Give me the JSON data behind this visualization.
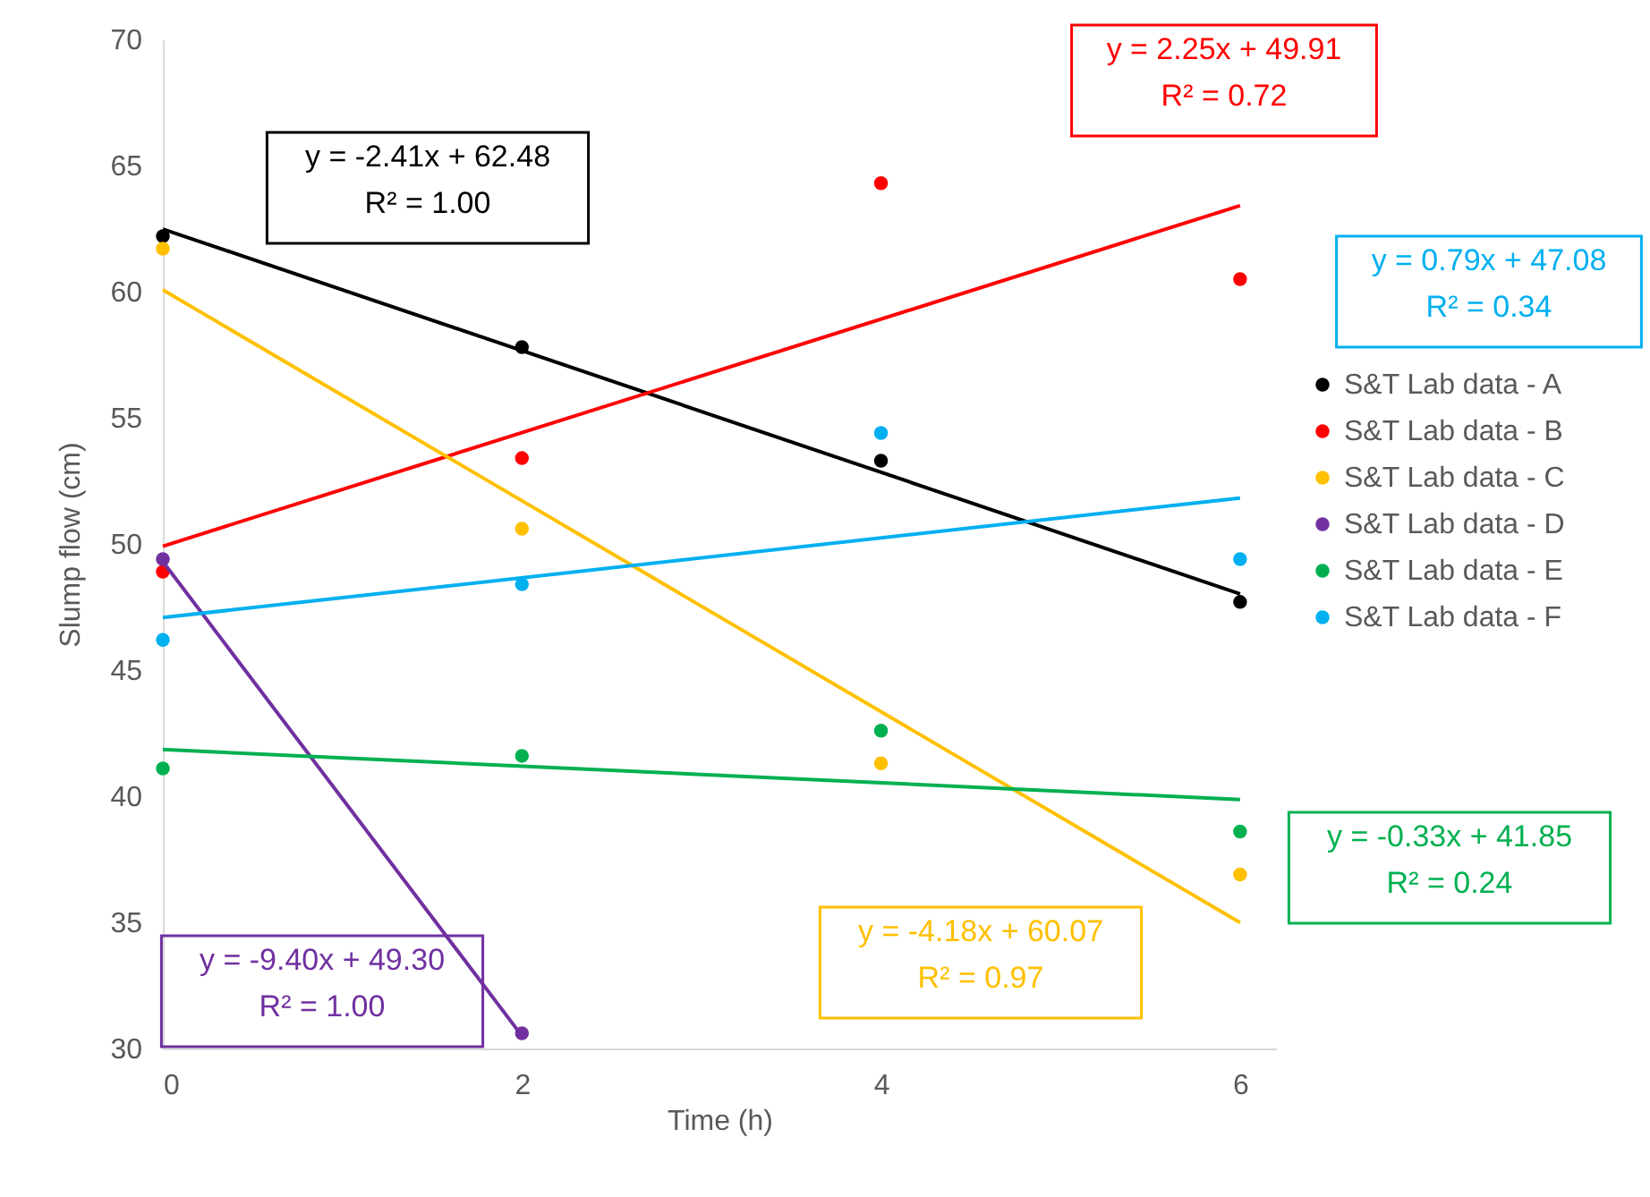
{
  "chart_data": {
    "type": "scatter",
    "xlabel": "Time (h)",
    "ylabel": "Slump flow (cm)",
    "xlim": [
      0,
      6.2
    ],
    "ylim": [
      30,
      70
    ],
    "xticks": [
      0,
      2,
      4,
      6
    ],
    "yticks": [
      30,
      35,
      40,
      45,
      50,
      55,
      60,
      65,
      70
    ],
    "legend": "right",
    "marker": "circle",
    "series": [
      {
        "name": "S&T Lab data - A",
        "color": "#000000",
        "x": [
          0,
          2,
          4,
          6
        ],
        "values": [
          62.2,
          57.8,
          53.3,
          47.7
        ]
      },
      {
        "name": "S&T Lab data - B",
        "color": "#ff0000",
        "x": [
          0,
          2,
          4,
          6
        ],
        "values": [
          48.9,
          53.4,
          64.3,
          60.5
        ]
      },
      {
        "name": "S&T Lab data - C",
        "color": "#ffc000",
        "x": [
          0,
          2,
          4,
          6
        ],
        "values": [
          61.7,
          50.6,
          41.3,
          36.9
        ]
      },
      {
        "name": "S&T Lab data - D",
        "color": "#7030a0",
        "x": [
          0,
          2
        ],
        "values": [
          49.4,
          30.6
        ]
      },
      {
        "name": "S&T Lab data - E",
        "color": "#00b050",
        "x": [
          0,
          2,
          4,
          6
        ],
        "values": [
          41.1,
          41.6,
          42.6,
          38.6
        ]
      },
      {
        "name": "S&T Lab data - F",
        "color": "#00b0f0",
        "x": [
          0,
          2,
          4,
          6
        ],
        "values": [
          46.2,
          48.4,
          54.4,
          49.4
        ]
      },
      {
        "type": "line",
        "marker": "none",
        "color": "#000000",
        "x": [
          0,
          6
        ],
        "values": [
          62.48,
          48.02
        ]
      },
      {
        "type": "line",
        "marker": "none",
        "color": "#ff0000",
        "x": [
          0,
          6
        ],
        "values": [
          49.91,
          63.41
        ]
      },
      {
        "type": "line",
        "marker": "none",
        "color": "#ffc000",
        "x": [
          0,
          6
        ],
        "values": [
          60.07,
          34.99
        ]
      },
      {
        "type": "line",
        "marker": "none",
        "color": "#7030a0",
        "x": [
          0,
          2
        ],
        "values": [
          49.3,
          30.5
        ]
      },
      {
        "type": "line",
        "marker": "none",
        "color": "#00b050",
        "x": [
          0,
          6
        ],
        "values": [
          41.85,
          39.87
        ]
      },
      {
        "type": "line",
        "marker": "none",
        "color": "#00b0f0",
        "x": [
          0,
          6
        ],
        "values": [
          47.08,
          51.82
        ]
      }
    ],
    "annotations": [
      "y = -2.41x + 62.48\nR² = 1.00",
      "y = 2.25x + 49.91\nR² = 0.72",
      "y = -4.18x + 60.07\nR² = 0.97",
      "y = -9.40x + 49.30\nR² = 1.00",
      "y = -0.33x + 41.85\nR² = 0.24",
      "y = 0.79x + 47.08\nR² = 0.34"
    ]
  }
}
